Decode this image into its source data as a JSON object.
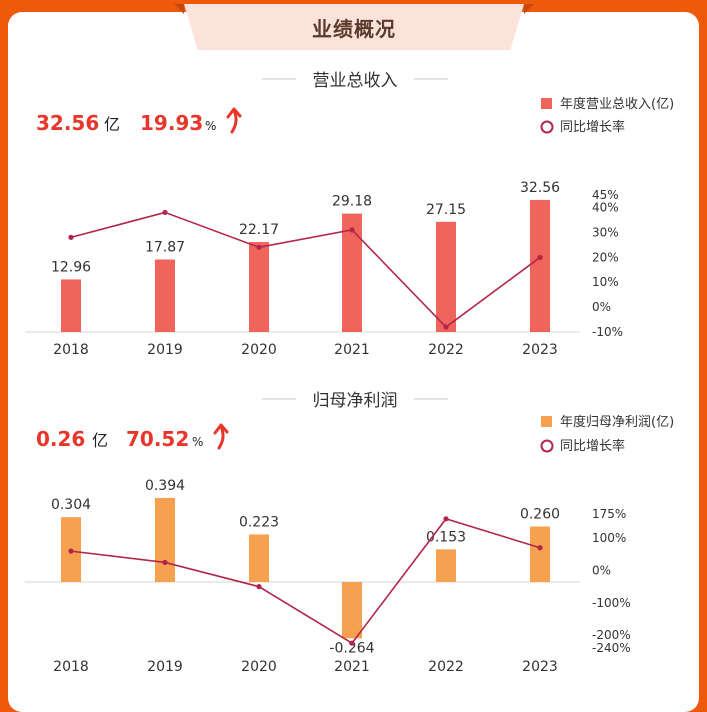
{
  "panel_title": "业绩概况",
  "colors": {
    "revenue_bar": "#f0655b",
    "profit_bar": "#f5a150",
    "line": "#b3264a",
    "accent_text": "#e8362b",
    "arrow": "#e8362b"
  },
  "sections": [
    {
      "title": "营业总收入",
      "summary": {
        "value": "32.56",
        "value_unit": "亿",
        "growth": "19.93",
        "growth_unit": "%",
        "arrow_icon": "up-arrow-icon"
      },
      "legend": {
        "bar_label": "年度营业总收入(亿)",
        "line_label": "同比增长率"
      }
    },
    {
      "title": "归母净利润",
      "summary": {
        "value": "0.26",
        "value_unit": "亿",
        "growth": "70.52",
        "growth_unit": "%",
        "arrow_icon": "up-arrow-icon"
      },
      "legend": {
        "bar_label": "年度归母净利润(亿)",
        "line_label": "同比增长率"
      }
    }
  ],
  "chart_data": [
    {
      "type": "bar",
      "categories": [
        "2018",
        "2019",
        "2020",
        "2021",
        "2022",
        "2023"
      ],
      "series": [
        {
          "name": "年度营业总收入(亿)",
          "type": "bar",
          "values": [
            12.96,
            17.87,
            22.17,
            29.18,
            27.15,
            32.56
          ],
          "labels": [
            "12.96",
            "17.87",
            "22.17",
            "29.18",
            "27.15",
            "32.56"
          ]
        },
        {
          "name": "同比增长率",
          "type": "line",
          "axis": "right",
          "values": [
            28,
            38,
            24,
            31,
            -8,
            19.93
          ]
        }
      ],
      "y_left_lim": [
        0,
        35
      ],
      "y_right_lim": [
        -10,
        45
      ],
      "y_right_ticks": [
        "45%",
        "40%",
        "30%",
        "20%",
        "10%",
        "0%",
        "-10%"
      ],
      "y_right_tick_values": [
        45,
        40,
        30,
        20,
        10,
        0,
        -10
      ],
      "grid": false,
      "legend": "top-right"
    },
    {
      "type": "bar",
      "categories": [
        "2018",
        "2019",
        "2020",
        "2021",
        "2022",
        "2023"
      ],
      "series": [
        {
          "name": "年度归母净利润(亿)",
          "type": "bar",
          "values": [
            0.304,
            0.394,
            0.223,
            -0.264,
            0.153,
            0.26
          ],
          "labels": [
            "0.304",
            "0.394",
            "0.223",
            "-0.264",
            "0.153",
            "0.260"
          ]
        },
        {
          "name": "同比增长率",
          "type": "line",
          "axis": "right",
          "values": [
            60,
            25,
            -50,
            -225,
            160,
            70.52
          ]
        }
      ],
      "y_left_lim": [
        -0.3,
        0.45
      ],
      "y_right_lim": [
        -240,
        175
      ],
      "y_right_ticks": [
        "175%",
        "100%",
        "0%",
        "-100%",
        "-200%",
        "-240%"
      ],
      "y_right_tick_values": [
        175,
        100,
        0,
        -100,
        -200,
        -240
      ],
      "grid": false,
      "legend": "top-right"
    }
  ]
}
